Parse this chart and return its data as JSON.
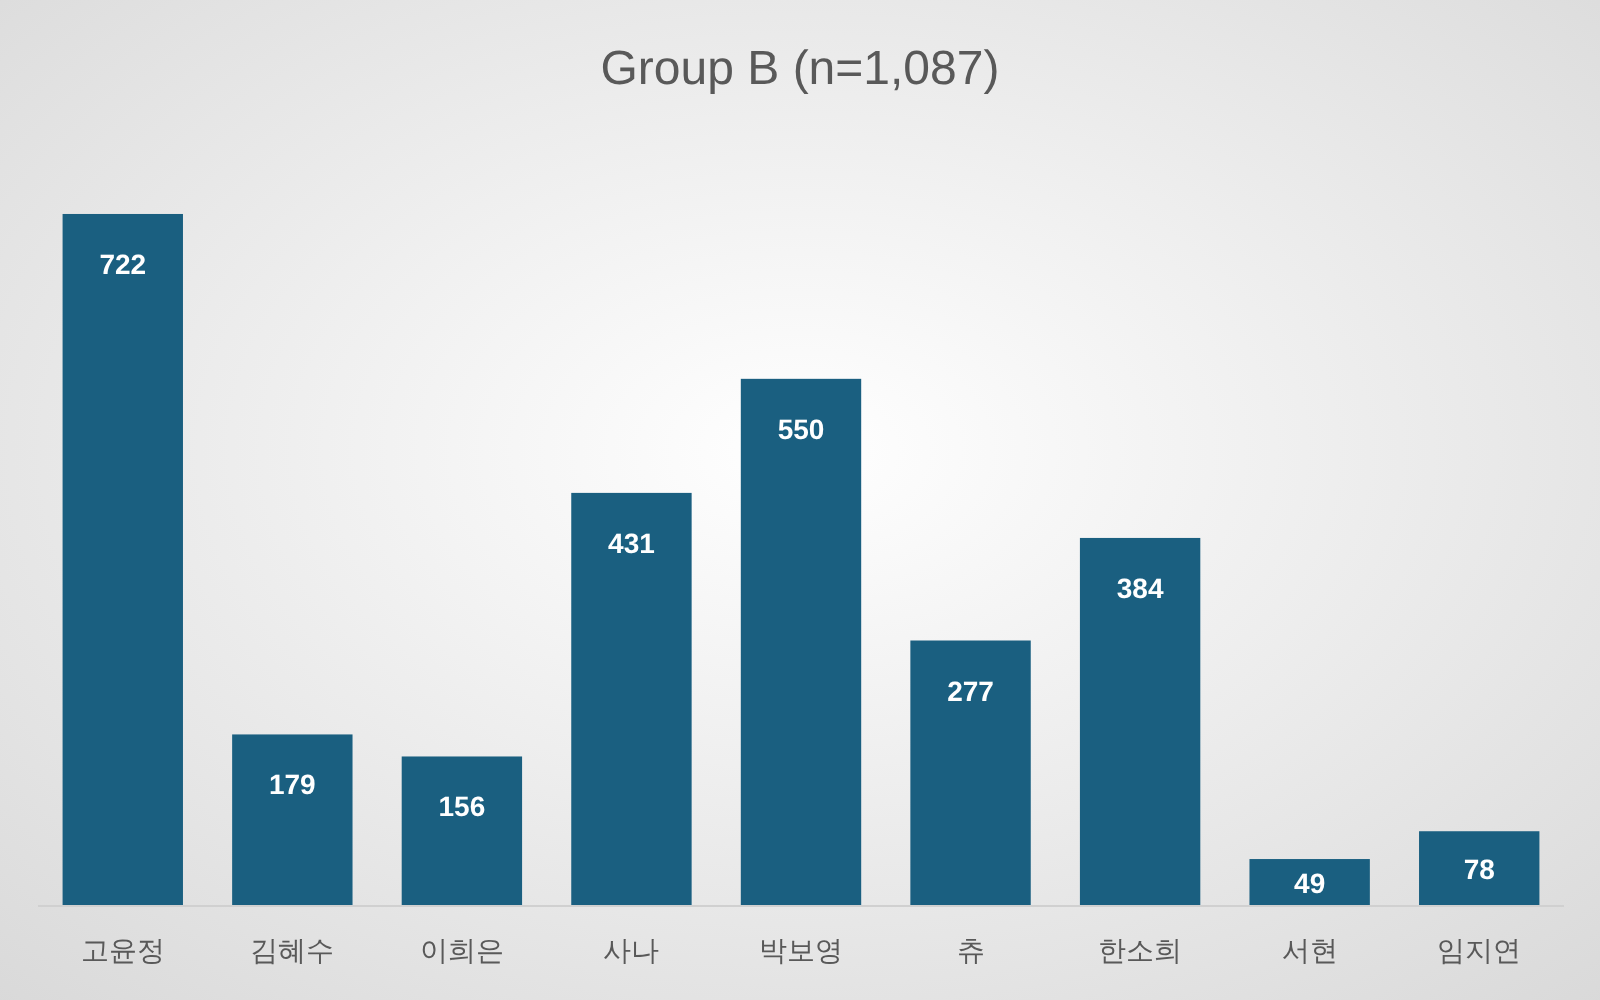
{
  "chart_data": {
    "type": "bar",
    "title": "Group B (n=1,087)",
    "categories": [
      "고윤정",
      "김혜수",
      "이희은",
      "사나",
      "박보영",
      "츄",
      "한소희",
      "서현",
      "임지연"
    ],
    "values": [
      722,
      179,
      156,
      431,
      550,
      277,
      384,
      49,
      78
    ],
    "color": "#1a5f80",
    "data_labels": true
  }
}
